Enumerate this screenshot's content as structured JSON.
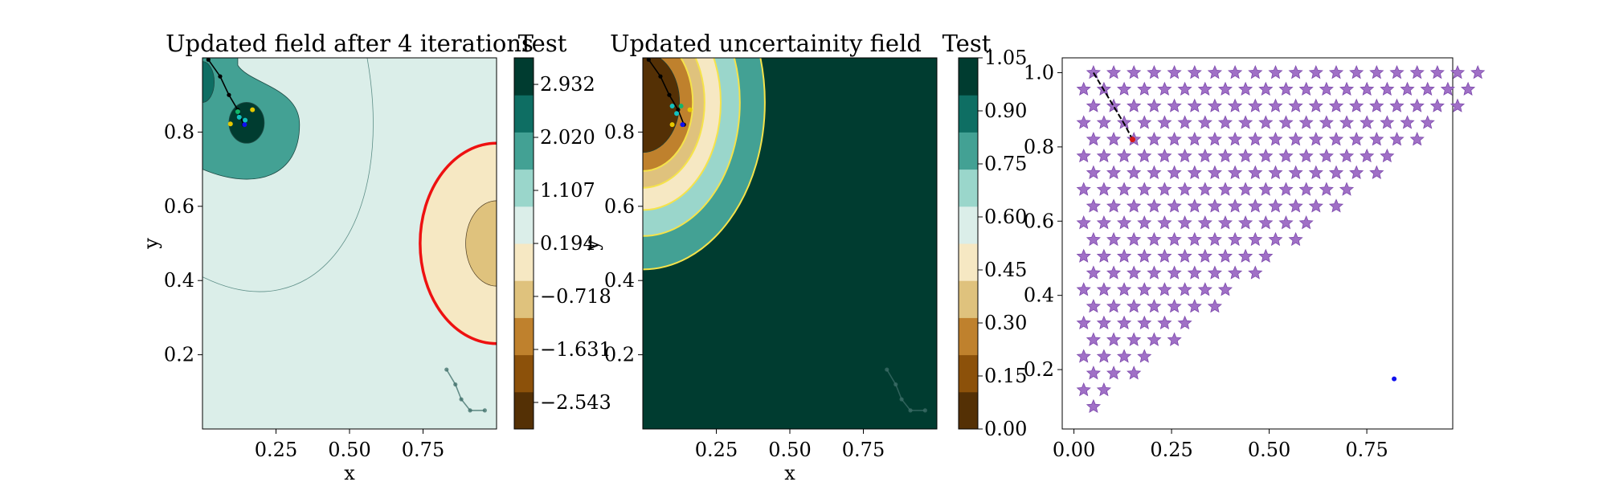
{
  "colors": {
    "brbg": [
      "#543005",
      "#8c510a",
      "#bf812d",
      "#dfc27d",
      "#f6e8c3",
      "#dbeee9",
      "#9ad6cb",
      "#43a194",
      "#0e6e63",
      "#003c30"
    ],
    "red_contour": "#ee1111",
    "yellow_contour": "#f5e34a",
    "star_fill": "#a070c6",
    "star_edge": "#7d49ad",
    "path": "#000000",
    "path_faded": "#3d6e68",
    "point_blue": "#1010ee",
    "point_green": "#12b56a",
    "point_teal": "#12c0c0",
    "point_yellow": "#e6c800"
  },
  "chart_data": [
    {
      "type": "heatmap",
      "title": "Updated field after 4 iterations",
      "xlabel": "x",
      "ylabel": "y",
      "xlim": [
        0.0,
        1.0
      ],
      "ylim": [
        0.0,
        1.0
      ],
      "xticks": [
        "0.25",
        "0.50",
        "0.75"
      ],
      "yticks": [
        "0.2",
        "0.4",
        "0.6",
        "0.8"
      ],
      "colorbar": {
        "label": "Test",
        "min": -3.0,
        "max": 3.389,
        "tick_values": [
          2.932,
          2.02,
          1.107,
          0.194,
          -0.718,
          -1.631,
          -2.543
        ],
        "tick_labels": [
          "2.932",
          "2.020",
          "1.107",
          "0.194",
          "−0.718",
          "−1.631",
          "−2.543"
        ]
      },
      "regions": [
        {
          "name": "background",
          "level": 0.65
        },
        {
          "name": "upper-left lobe",
          "level": 1.55
        },
        {
          "name": "left hump",
          "level": 2.5
        },
        {
          "name": "inner peak",
          "level": 2.95
        },
        {
          "name": "right trough outer",
          "level": -0.26
        },
        {
          "name": "right trough inner",
          "level": -0.5
        }
      ],
      "red_contour": {
        "center": [
          1.0,
          0.5
        ],
        "radii": [
          0.26,
          0.27
        ]
      },
      "path_main": [
        [
          0.02,
          0.995
        ],
        [
          0.06,
          0.95
        ],
        [
          0.09,
          0.9
        ],
        [
          0.12,
          0.86
        ],
        [
          0.14,
          0.82
        ]
      ],
      "path_faded": [
        [
          0.83,
          0.16
        ],
        [
          0.86,
          0.12
        ],
        [
          0.88,
          0.08
        ],
        [
          0.91,
          0.05
        ],
        [
          0.96,
          0.05
        ]
      ],
      "samples": [
        {
          "x": 0.12,
          "y": 0.855,
          "color": "green"
        },
        {
          "x": 0.125,
          "y": 0.84,
          "color": "teal"
        },
        {
          "x": 0.145,
          "y": 0.832,
          "color": "teal"
        },
        {
          "x": 0.095,
          "y": 0.822,
          "color": "yellow"
        },
        {
          "x": 0.17,
          "y": 0.86,
          "color": "yellow"
        },
        {
          "x": 0.143,
          "y": 0.82,
          "color": "blue"
        }
      ]
    },
    {
      "type": "heatmap",
      "title": "Updated uncertainity field",
      "xlabel": "x",
      "ylabel": "y",
      "xlim": [
        0.0,
        1.0
      ],
      "ylim": [
        0.0,
        1.0
      ],
      "xticks": [
        "0.25",
        "0.50",
        "0.75"
      ],
      "yticks": [
        "0.2",
        "0.4",
        "0.6",
        "0.8"
      ],
      "colorbar": {
        "label": "Test",
        "min": 0.0,
        "max": 1.05,
        "tick_values": [
          1.05,
          0.9,
          0.75,
          0.6,
          0.45,
          0.3,
          0.15,
          0.0
        ],
        "tick_labels": [
          "1.05",
          "0.90",
          "0.75",
          "0.60",
          "0.45",
          "0.30",
          "0.15",
          "0.00"
        ]
      },
      "well_center": [
        0.0,
        0.88
      ],
      "bands": [
        {
          "radius": [
            0.415,
            0.45
          ],
          "level": 0.8
        },
        {
          "radius": [
            0.33,
            0.36
          ],
          "level": 0.65
        },
        {
          "radius": [
            0.265,
            0.29
          ],
          "level": 0.5
        },
        {
          "radius": [
            0.21,
            0.23
          ],
          "level": 0.38
        },
        {
          "radius": [
            0.17,
            0.185
          ],
          "level": 0.22
        },
        {
          "radius": [
            0.125,
            0.135
          ],
          "level": 0.05
        }
      ],
      "background_level": 1.0,
      "path_main": [
        [
          0.02,
          0.995
        ],
        [
          0.06,
          0.95
        ],
        [
          0.09,
          0.9
        ],
        [
          0.12,
          0.86
        ],
        [
          0.14,
          0.82
        ]
      ],
      "path_faded": [
        [
          0.83,
          0.16
        ],
        [
          0.86,
          0.12
        ],
        [
          0.88,
          0.08
        ],
        [
          0.91,
          0.05
        ],
        [
          0.96,
          0.05
        ]
      ],
      "samples": [
        {
          "x": 0.1,
          "y": 0.87,
          "color": "teal"
        },
        {
          "x": 0.13,
          "y": 0.87,
          "color": "green"
        },
        {
          "x": 0.115,
          "y": 0.85,
          "color": "teal"
        },
        {
          "x": 0.1,
          "y": 0.82,
          "color": "yellow"
        },
        {
          "x": 0.16,
          "y": 0.86,
          "color": "yellow"
        },
        {
          "x": 0.135,
          "y": 0.82,
          "color": "blue"
        }
      ]
    },
    {
      "type": "scatter",
      "title": "",
      "xlabel": "",
      "ylabel": "",
      "xlim": [
        -0.03,
        0.97
      ],
      "ylim": [
        0.04,
        1.04
      ],
      "xticks": [
        "0.00",
        "0.25",
        "0.50",
        "0.75"
      ],
      "yticks": [
        "0.2",
        "0.4",
        "0.6",
        "0.8",
        "1.0"
      ],
      "grid": {
        "x_start": 0.025,
        "x_step": 0.0518,
        "rows": [
          {
            "y": 1.0,
            "x_first": 0.05,
            "count": 20
          },
          {
            "y": 0.955,
            "x_first": 0.025,
            "count": 20
          },
          {
            "y": 0.91,
            "x_first": 0.05,
            "count": 19
          },
          {
            "y": 0.865,
            "x_first": 0.025,
            "count": 18
          },
          {
            "y": 0.82,
            "x_first": 0.05,
            "count": 17
          },
          {
            "y": 0.775,
            "x_first": 0.025,
            "count": 16
          },
          {
            "y": 0.73,
            "x_first": 0.05,
            "count": 15
          },
          {
            "y": 0.685,
            "x_first": 0.025,
            "count": 14
          },
          {
            "y": 0.64,
            "x_first": 0.05,
            "count": 13
          },
          {
            "y": 0.595,
            "x_first": 0.025,
            "count": 12
          },
          {
            "y": 0.55,
            "x_first": 0.05,
            "count": 11
          },
          {
            "y": 0.505,
            "x_first": 0.025,
            "count": 10
          },
          {
            "y": 0.46,
            "x_first": 0.05,
            "count": 9
          },
          {
            "y": 0.415,
            "x_first": 0.025,
            "count": 8
          },
          {
            "y": 0.37,
            "x_first": 0.05,
            "count": 7
          },
          {
            "y": 0.325,
            "x_first": 0.025,
            "count": 6
          },
          {
            "y": 0.28,
            "x_first": 0.05,
            "count": 5
          },
          {
            "y": 0.235,
            "x_first": 0.025,
            "count": 4
          },
          {
            "y": 0.19,
            "x_first": 0.05,
            "count": 3
          },
          {
            "y": 0.145,
            "x_first": 0.025,
            "count": 2
          },
          {
            "y": 0.1,
            "x_first": 0.05,
            "count": 1
          }
        ]
      },
      "path": [
        [
          0.05,
          1.0
        ],
        [
          0.07,
          0.965
        ],
        [
          0.09,
          0.93
        ],
        [
          0.11,
          0.895
        ],
        [
          0.13,
          0.86
        ],
        [
          0.15,
          0.82
        ]
      ],
      "end_marker": {
        "x": 0.15,
        "y": 0.82,
        "color": "red"
      },
      "extra_point": {
        "x": 0.82,
        "y": 0.175,
        "color": "blue"
      }
    }
  ]
}
